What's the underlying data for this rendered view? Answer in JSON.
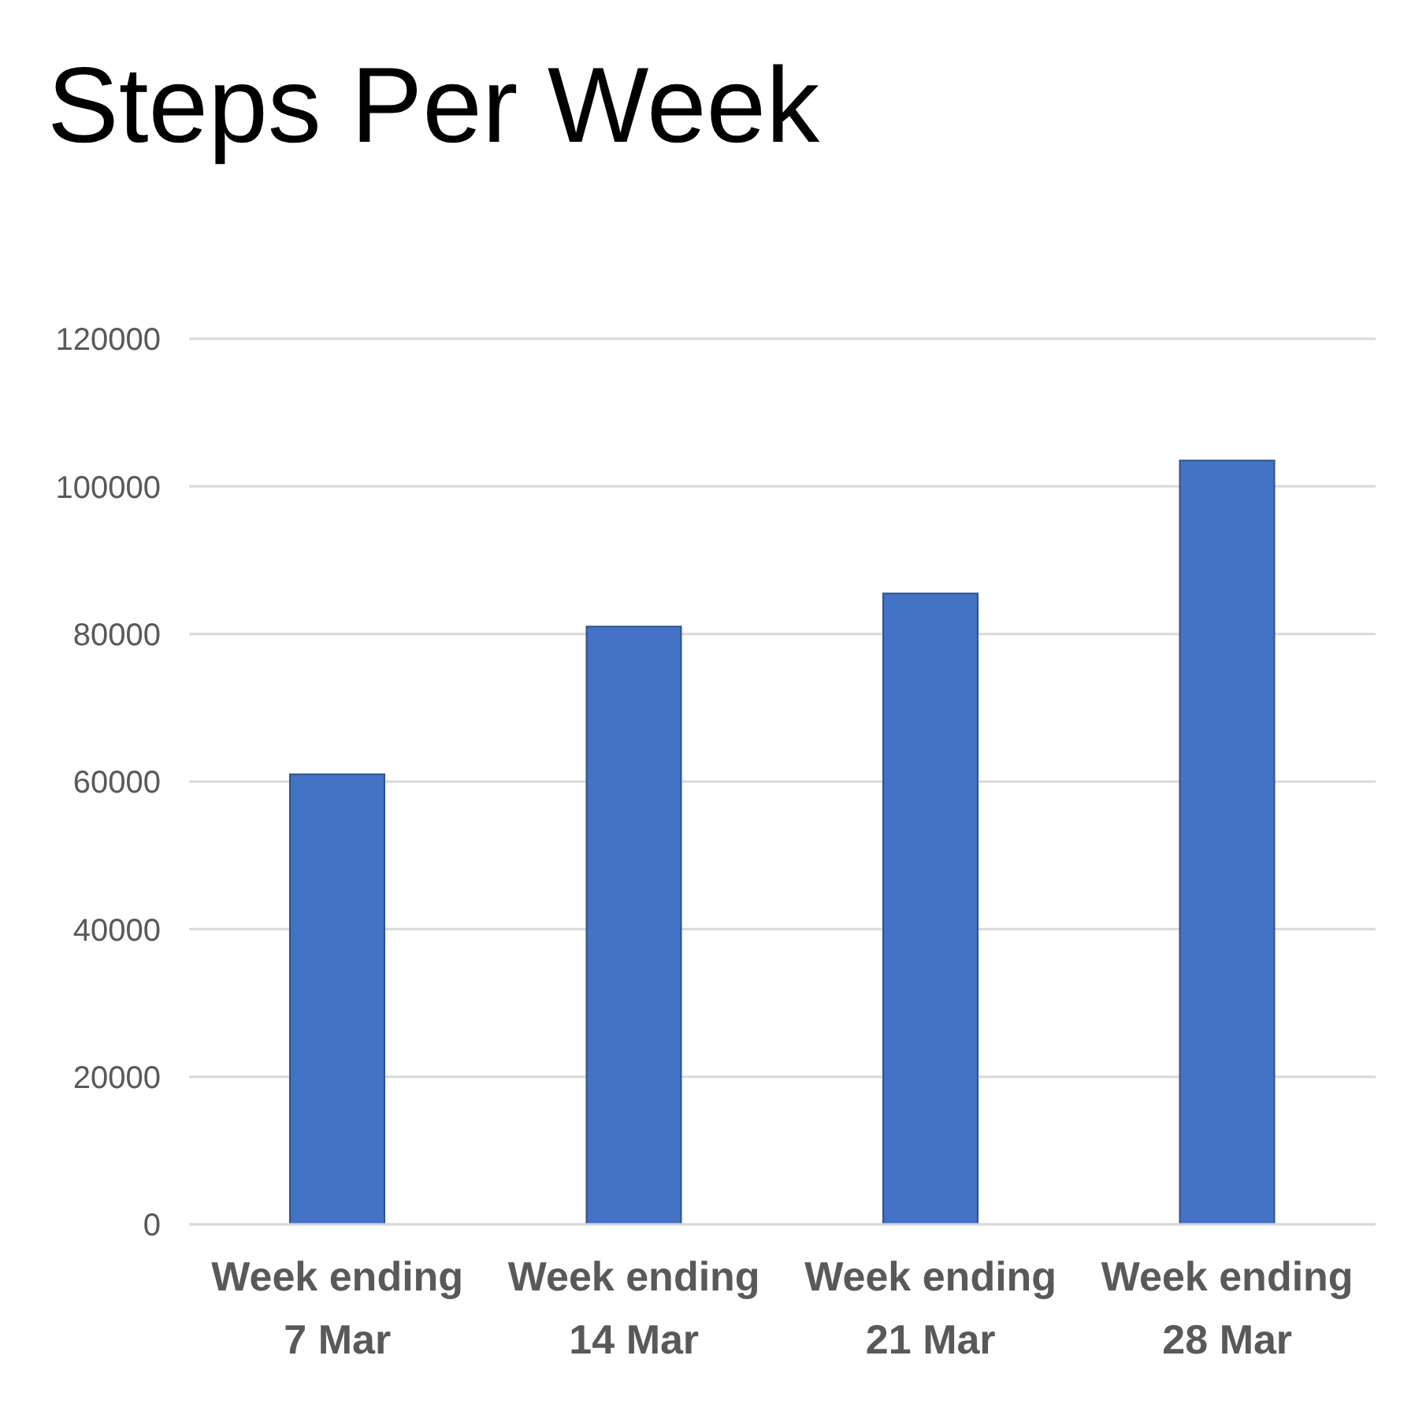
{
  "chart_data": {
    "type": "bar",
    "title": "Steps Per Week",
    "categories": [
      "Week ending 7 Mar",
      "Week ending 14 Mar",
      "Week ending 21 Mar",
      "Week ending 28 Mar"
    ],
    "values": [
      61000,
      81000,
      85500,
      103500
    ],
    "color": "#4472c4",
    "ylim": [
      0,
      120000
    ],
    "yticks": [
      0,
      20000,
      40000,
      60000,
      80000,
      100000,
      120000
    ],
    "grid": "y"
  }
}
